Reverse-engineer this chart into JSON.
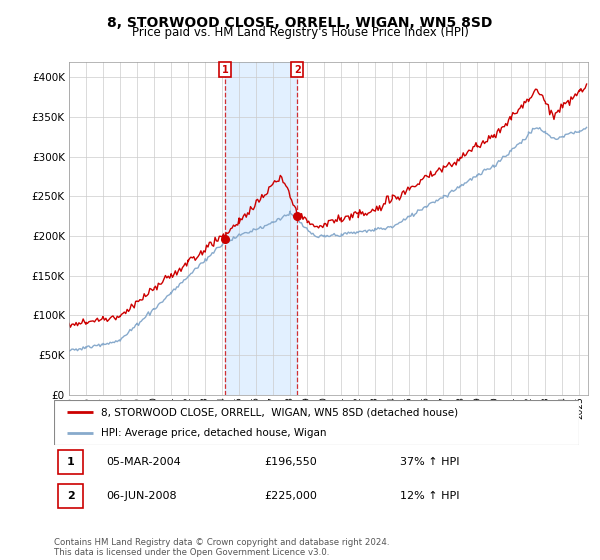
{
  "title": "8, STORWOOD CLOSE, ORRELL, WIGAN, WN5 8SD",
  "subtitle": "Price paid vs. HM Land Registry's House Price Index (HPI)",
  "property_label": "8, STORWOOD CLOSE, ORRELL,  WIGAN, WN5 8SD (detached house)",
  "hpi_label": "HPI: Average price, detached house, Wigan",
  "transaction1_date": "05-MAR-2004",
  "transaction1_price": 196550,
  "transaction1_hpi": "37% ↑ HPI",
  "transaction2_date": "06-JUN-2008",
  "transaction2_price": 225000,
  "transaction2_hpi": "12% ↑ HPI",
  "footer": "Contains HM Land Registry data © Crown copyright and database right 2024.\nThis data is licensed under the Open Government Licence v3.0.",
  "property_color": "#cc0000",
  "hpi_color": "#88aacc",
  "vline_color": "#cc0000",
  "background_color": "#ffffff",
  "shading_color": "#ddeeff",
  "ylim_min": 0,
  "ylim_max": 420000,
  "title_fontsize": 10,
  "subtitle_fontsize": 8.5
}
